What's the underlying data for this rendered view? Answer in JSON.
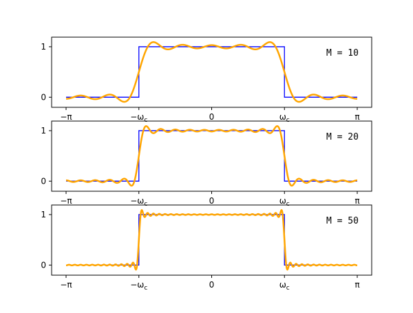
{
  "chart_data": [
    {
      "type": "line",
      "annotation": "M = 10",
      "M": 10,
      "omega_c": "pi/2",
      "xlim": [
        "-pi",
        "pi"
      ],
      "ylim": [
        -0.2,
        1.19
      ],
      "xticks": [
        "−π",
        "−ω",
        "0",
        "ω",
        "π"
      ],
      "xtick_sub": "c",
      "yticks": [
        "0",
        "1"
      ],
      "grid": false,
      "series": [
        {
          "kind": "ideal lowpass",
          "color": "#0000ff"
        },
        {
          "kind": "truncated Fourier series",
          "color": "#ffa500"
        }
      ]
    },
    {
      "type": "line",
      "annotation": "M = 20",
      "M": 20,
      "omega_c": "pi/2",
      "xlim": [
        "-pi",
        "pi"
      ],
      "ylim": [
        -0.2,
        1.19
      ],
      "xticks": [
        "−π",
        "−ω",
        "0",
        "ω",
        "π"
      ],
      "xtick_sub": "c",
      "yticks": [
        "0",
        "1"
      ],
      "grid": false,
      "series": [
        {
          "kind": "ideal lowpass",
          "color": "#0000ff"
        },
        {
          "kind": "truncated Fourier series",
          "color": "#ffa500"
        }
      ]
    },
    {
      "type": "line",
      "annotation": "M = 50",
      "M": 50,
      "omega_c": "pi/2",
      "xlim": [
        "-pi",
        "pi"
      ],
      "ylim": [
        -0.2,
        1.19
      ],
      "xticks": [
        "−π",
        "−ω",
        "0",
        "ω",
        "π"
      ],
      "xtick_sub": "c",
      "yticks": [
        "0",
        "1"
      ],
      "grid": false,
      "series": [
        {
          "kind": "ideal lowpass",
          "color": "#0000ff"
        },
        {
          "kind": "truncated Fourier series",
          "color": "#ffa500"
        }
      ]
    }
  ]
}
